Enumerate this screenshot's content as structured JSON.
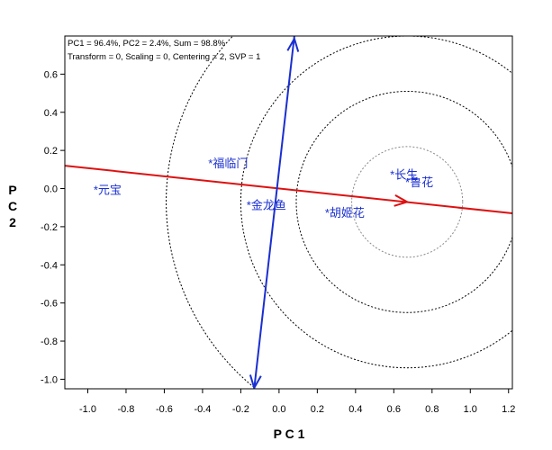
{
  "chart_data": {
    "type": "scatter",
    "subtype": "GGE biplot",
    "info_lines": [
      "PC1 = 96.4%, PC2 = 2.4%, Sum = 98.8%",
      "Transform = 0, Scaling = 0, Centering = 2, SVP = 1"
    ],
    "xlabel": "P C 1",
    "ylabel": "P C 2",
    "xlim": [
      -1.12,
      1.22
    ],
    "ylim": [
      -1.05,
      0.8
    ],
    "x_ticks": [
      -1.0,
      -0.8,
      -0.6,
      -0.4,
      -0.2,
      0.0,
      0.2,
      0.4,
      0.6,
      0.8,
      1.0,
      1.2
    ],
    "x_tick_labels": [
      "-1.0",
      "-0.8",
      "-0.6",
      "-0.4",
      "-0.2",
      "0.0",
      "0.2",
      "0.4",
      "0.6",
      "0.8",
      "1.0",
      "1.2"
    ],
    "y_ticks": [
      0.6,
      0.4,
      0.2,
      0.0,
      -0.2,
      -0.4,
      -0.6,
      -0.8,
      -1.0
    ],
    "y_tick_labels": [
      "0.6",
      "0.4",
      "0.2",
      "0.0",
      "-0.2",
      "-0.4",
      "-0.6",
      "-0.8",
      "-1.0"
    ],
    "grid": false,
    "points": [
      {
        "label": "*元宝",
        "x": -0.97,
        "y": -0.01
      },
      {
        "label": "*福临门",
        "x": -0.37,
        "y": 0.13
      },
      {
        "label": "*金龙鱼",
        "x": -0.17,
        "y": -0.09
      },
      {
        "label": "*胡姬花",
        "x": 0.24,
        "y": -0.13
      },
      {
        "label": "*长生",
        "x": 0.58,
        "y": 0.07
      },
      {
        "label": "*鲁花",
        "x": 0.66,
        "y": 0.03
      }
    ],
    "red_axis": {
      "x1": -1.12,
      "y1": 0.12,
      "x2": 1.22,
      "y2": -0.13,
      "arrow_x": 0.67,
      "arrow_y": -0.07,
      "color": "#dd1111"
    },
    "blue_axis": {
      "x1": -0.13,
      "y1": -1.05,
      "x2": 0.08,
      "y2": 0.8,
      "color": "#1a2fd0"
    },
    "concentric_circles": {
      "center_x": 0.67,
      "center_y": -0.07,
      "radii": [
        0.29,
        0.58,
        0.87,
        1.26
      ],
      "color": "#000000",
      "inner_color": "#888888"
    }
  }
}
